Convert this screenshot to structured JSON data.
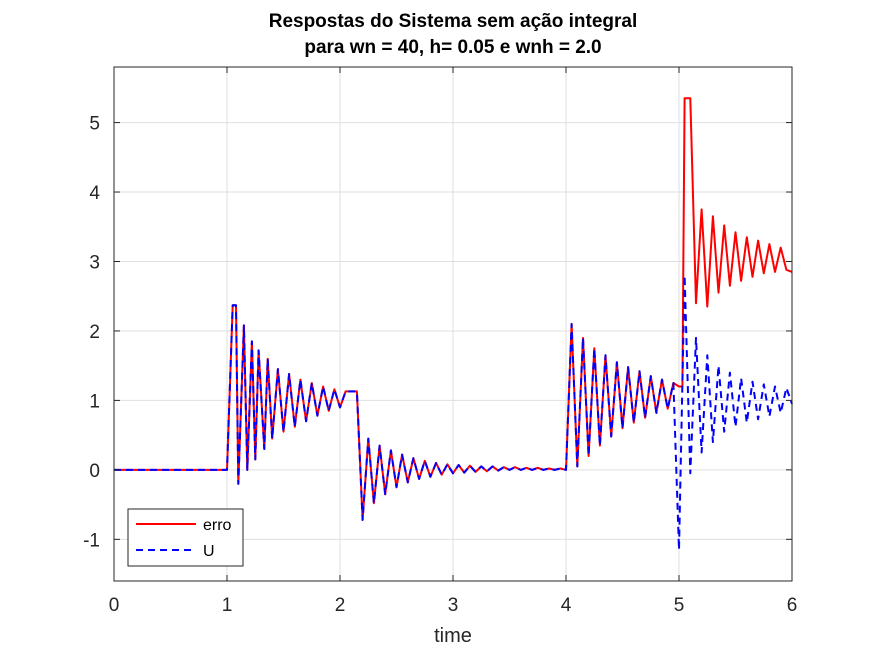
{
  "chart_data": {
    "type": "line",
    "title_line1": "Respostas do Sistema sem ação integral",
    "title_line2": "para wn = 40, h= 0.05 e wnh = 2.0",
    "xlabel": "time",
    "ylabel": "",
    "xlim": [
      0,
      6
    ],
    "ylim": [
      -1.6,
      5.8
    ],
    "xticks": [
      0,
      1,
      2,
      3,
      4,
      5,
      6
    ],
    "yticks": [
      -1,
      0,
      1,
      2,
      3,
      4,
      5
    ],
    "grid": true,
    "legend_position": "bottom-left",
    "series": [
      {
        "name": "erro",
        "color": "#ff0000",
        "style": "solid",
        "x": [
          0,
          1.0,
          1.05,
          1.08,
          1.1,
          1.15,
          1.18,
          1.22,
          1.25,
          1.28,
          1.33,
          1.36,
          1.4,
          1.45,
          1.5,
          1.55,
          1.6,
          1.65,
          1.7,
          1.75,
          1.8,
          1.85,
          1.9,
          1.95,
          2.0,
          2.05,
          2.1,
          2.15,
          2.2,
          2.25,
          2.3,
          2.35,
          2.4,
          2.45,
          2.5,
          2.55,
          2.6,
          2.65,
          2.7,
          2.75,
          2.8,
          2.85,
          2.9,
          2.95,
          3.0,
          3.05,
          3.1,
          3.15,
          3.2,
          3.25,
          3.3,
          3.35,
          3.4,
          3.45,
          3.5,
          3.55,
          3.6,
          3.65,
          3.7,
          3.75,
          3.8,
          3.85,
          3.9,
          3.95,
          4.0,
          4.05,
          4.1,
          4.15,
          4.2,
          4.25,
          4.3,
          4.35,
          4.4,
          4.45,
          4.5,
          4.55,
          4.6,
          4.65,
          4.7,
          4.75,
          4.8,
          4.85,
          4.9,
          4.95,
          5.0,
          5.03,
          5.05,
          5.08,
          5.1,
          5.15,
          5.2,
          5.25,
          5.3,
          5.35,
          5.4,
          5.45,
          5.5,
          5.55,
          5.6,
          5.65,
          5.7,
          5.75,
          5.8,
          5.85,
          5.9,
          5.95,
          6.0
        ],
        "y": [
          0,
          0,
          2.37,
          2.37,
          -0.2,
          2.08,
          0.0,
          1.85,
          0.15,
          1.72,
          0.3,
          1.6,
          0.45,
          1.45,
          0.55,
          1.38,
          0.62,
          1.3,
          0.7,
          1.25,
          0.78,
          1.2,
          0.85,
          1.16,
          0.9,
          1.13,
          1.13,
          1.13,
          -0.72,
          0.45,
          -0.48,
          0.35,
          -0.35,
          0.28,
          -0.25,
          0.22,
          -0.18,
          0.17,
          -0.13,
          0.13,
          -0.1,
          0.1,
          -0.07,
          0.08,
          -0.05,
          0.07,
          -0.04,
          0.06,
          -0.03,
          0.05,
          -0.02,
          0.05,
          -0.01,
          0.04,
          0.0,
          0.04,
          0.0,
          0.03,
          0.0,
          0.03,
          0.0,
          0.02,
          0.0,
          0.02,
          0.0,
          2.1,
          0.05,
          1.9,
          0.2,
          1.75,
          0.35,
          1.65,
          0.48,
          1.55,
          0.6,
          1.48,
          0.68,
          1.42,
          0.75,
          1.35,
          0.82,
          1.3,
          0.88,
          1.25,
          1.2,
          1.2,
          5.35,
          5.35,
          5.35,
          2.4,
          3.75,
          2.35,
          3.65,
          2.55,
          3.52,
          2.65,
          3.42,
          2.72,
          3.35,
          2.78,
          3.3,
          2.83,
          3.25,
          2.85,
          3.2,
          2.88,
          2.85
        ]
      },
      {
        "name": "U",
        "color": "#0000ff",
        "style": "dashed",
        "x": [
          0,
          1.0,
          1.05,
          1.08,
          1.1,
          1.15,
          1.18,
          1.22,
          1.25,
          1.28,
          1.33,
          1.36,
          1.4,
          1.45,
          1.5,
          1.55,
          1.6,
          1.65,
          1.7,
          1.75,
          1.8,
          1.85,
          1.9,
          1.95,
          2.0,
          2.05,
          2.1,
          2.15,
          2.2,
          2.25,
          2.3,
          2.35,
          2.4,
          2.45,
          2.5,
          2.55,
          2.6,
          2.65,
          2.7,
          2.75,
          2.8,
          2.85,
          2.9,
          2.95,
          3.0,
          3.05,
          3.1,
          3.15,
          3.2,
          3.25,
          3.3,
          3.35,
          3.4,
          3.45,
          3.5,
          3.55,
          3.6,
          3.65,
          3.7,
          3.75,
          3.8,
          3.85,
          3.9,
          3.95,
          4.0,
          4.05,
          4.1,
          4.15,
          4.2,
          4.25,
          4.3,
          4.35,
          4.4,
          4.45,
          4.5,
          4.55,
          4.6,
          4.65,
          4.7,
          4.75,
          4.8,
          4.85,
          4.9,
          4.95,
          5.0,
          5.05,
          5.1,
          5.15,
          5.2,
          5.25,
          5.3,
          5.35,
          5.4,
          5.45,
          5.5,
          5.55,
          5.6,
          5.65,
          5.7,
          5.75,
          5.8,
          5.85,
          5.9,
          5.95,
          6.0
        ],
        "y": [
          0,
          0,
          2.37,
          2.37,
          -0.2,
          2.08,
          0.0,
          1.85,
          0.15,
          1.72,
          0.3,
          1.6,
          0.45,
          1.45,
          0.55,
          1.38,
          0.62,
          1.3,
          0.7,
          1.25,
          0.78,
          1.2,
          0.85,
          1.16,
          0.9,
          1.13,
          1.13,
          1.13,
          -0.72,
          0.45,
          -0.48,
          0.35,
          -0.35,
          0.28,
          -0.25,
          0.22,
          -0.18,
          0.17,
          -0.13,
          0.13,
          -0.1,
          0.1,
          -0.07,
          0.08,
          -0.05,
          0.07,
          -0.04,
          0.06,
          -0.03,
          0.05,
          -0.02,
          0.05,
          -0.01,
          0.04,
          0.0,
          0.04,
          0.0,
          0.03,
          0.0,
          0.03,
          0.0,
          0.02,
          0.0,
          0.02,
          0.0,
          2.1,
          0.05,
          1.9,
          0.2,
          1.75,
          0.35,
          1.65,
          0.48,
          1.55,
          0.6,
          1.48,
          0.68,
          1.42,
          0.75,
          1.35,
          0.82,
          1.3,
          0.88,
          1.25,
          -1.15,
          2.8,
          -0.05,
          1.9,
          0.25,
          1.65,
          0.4,
          1.5,
          0.55,
          1.4,
          0.62,
          1.32,
          0.68,
          1.27,
          0.73,
          1.23,
          0.77,
          1.2,
          0.82,
          1.18,
          0.95
        ]
      }
    ]
  }
}
